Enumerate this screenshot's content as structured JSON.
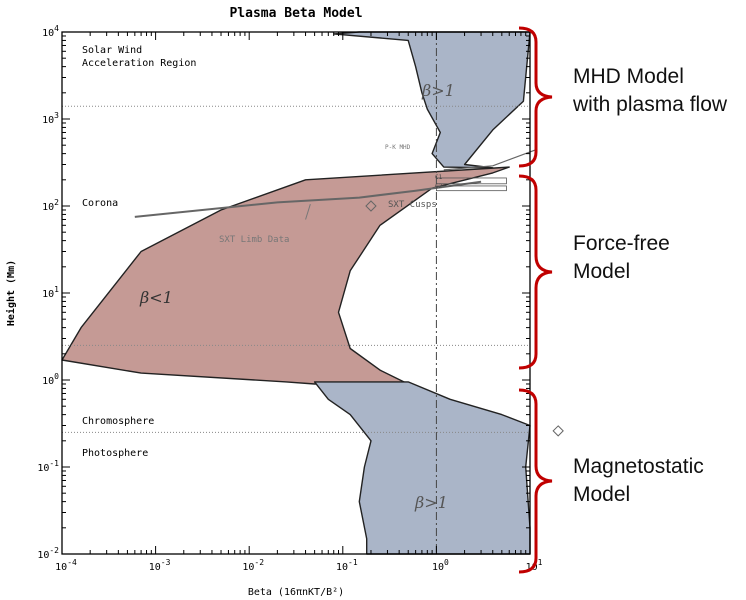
{
  "chart_data": {
    "type": "area",
    "title": "Plasma Beta Model",
    "xlabel": "Beta (16πnKT/B²)",
    "ylabel": "Height (Mm)",
    "xscale": "log",
    "yscale": "log",
    "xlim": [
      0.0001,
      10
    ],
    "ylim": [
      0.01,
      10000
    ],
    "x_ticks": [
      "10^-4",
      "10^-3",
      "10^-2",
      "10^-1",
      "10^0",
      "10^1"
    ],
    "y_ticks": [
      "10^-2",
      "10^-1",
      "10^0",
      "10^1",
      "10^2",
      "10^3",
      "10^4"
    ],
    "reference_line_x": 1,
    "boundary_heights": [
      1400,
      2.5,
      0.25
    ],
    "series": [
      {
        "region": "β<1",
        "color": "#c59a95",
        "low_beta_edge": [
          [
            0.04,
            200
          ],
          [
            0.005,
            90
          ],
          [
            0.0007,
            30
          ],
          [
            0.00016,
            4
          ],
          [
            0.0001,
            1.7
          ],
          [
            0.0007,
            1.2
          ],
          [
            0.025,
            0.95
          ],
          [
            0.05,
            0.9
          ]
        ],
        "high_beta_edge": [
          [
            6,
            280
          ],
          [
            4,
            240
          ],
          [
            0.9,
            160
          ],
          [
            0.25,
            60
          ],
          [
            0.12,
            18
          ],
          [
            0.09,
            6
          ],
          [
            0.12,
            2.3
          ],
          [
            0.25,
            1.3
          ],
          [
            0.5,
            0.9
          ]
        ]
      },
      {
        "region": "β>1 (upper)",
        "color": "#aab5c8",
        "left_edge": [
          [
            0.15,
            10000
          ],
          [
            0.08,
            9500
          ],
          [
            0.5,
            8000
          ],
          [
            0.6,
            4000
          ],
          [
            0.7,
            2000
          ],
          [
            0.8,
            1300
          ],
          [
            1.1,
            700
          ],
          [
            0.9,
            400
          ],
          [
            1.2,
            280
          ],
          [
            4,
            275
          ]
        ],
        "right_edge": [
          [
            10,
            10000
          ],
          [
            8.5,
            1600
          ],
          [
            4,
            750
          ],
          [
            2,
            300
          ]
        ]
      },
      {
        "region": "β>1 (lower)",
        "color": "#aab5c8",
        "left_edge": [
          [
            0.05,
            0.95
          ],
          [
            0.07,
            0.6
          ],
          [
            0.12,
            0.4
          ],
          [
            0.2,
            0.2
          ],
          [
            0.17,
            0.1
          ],
          [
            0.15,
            0.04
          ],
          [
            0.18,
            0.015
          ],
          [
            0.18,
            0.01
          ]
        ],
        "right_edge": [
          [
            0.5,
            0.95
          ],
          [
            1.4,
            0.6
          ],
          [
            5,
            0.4
          ],
          [
            10,
            0.3
          ],
          [
            9,
            0.1
          ],
          [
            10,
            0.02
          ],
          [
            10,
            0.01
          ]
        ]
      }
    ],
    "annotations": [
      "Solar Wind",
      "Acceleration Region",
      "Corona",
      "Chromosphere",
      "Photosphere",
      "β>1",
      "β<1",
      "β>1",
      "SXT Limb Data",
      "SXT Cusps",
      "P-K MHD",
      "C1",
      "C2"
    ]
  },
  "labels": {
    "solar_wind_1": "Solar Wind",
    "solar_wind_2": "Acceleration Region",
    "corona": "Corona",
    "chromosphere": "Chromosphere",
    "photosphere": "Photosphere",
    "beta_gt1_top": "β>1",
    "beta_lt1": "β<1",
    "beta_gt1_bottom": "β>1",
    "sxt_limb": "SXT Limb Data",
    "sxt_cusps": "SXT Cusps",
    "pk_mhd": "P-K MHD",
    "c1": "C1",
    "c2": "C2"
  },
  "side_labels": {
    "mhd_1": "MHD Model",
    "mhd_2": "with plasma flow",
    "ff_1": "Force-free",
    "ff_2": "Model",
    "ms_1": "Magnetostatic",
    "ms_2": "Model"
  },
  "colors": {
    "bracket": "#c00000",
    "pink": "#c59a95",
    "blue": "#aab5c8"
  }
}
